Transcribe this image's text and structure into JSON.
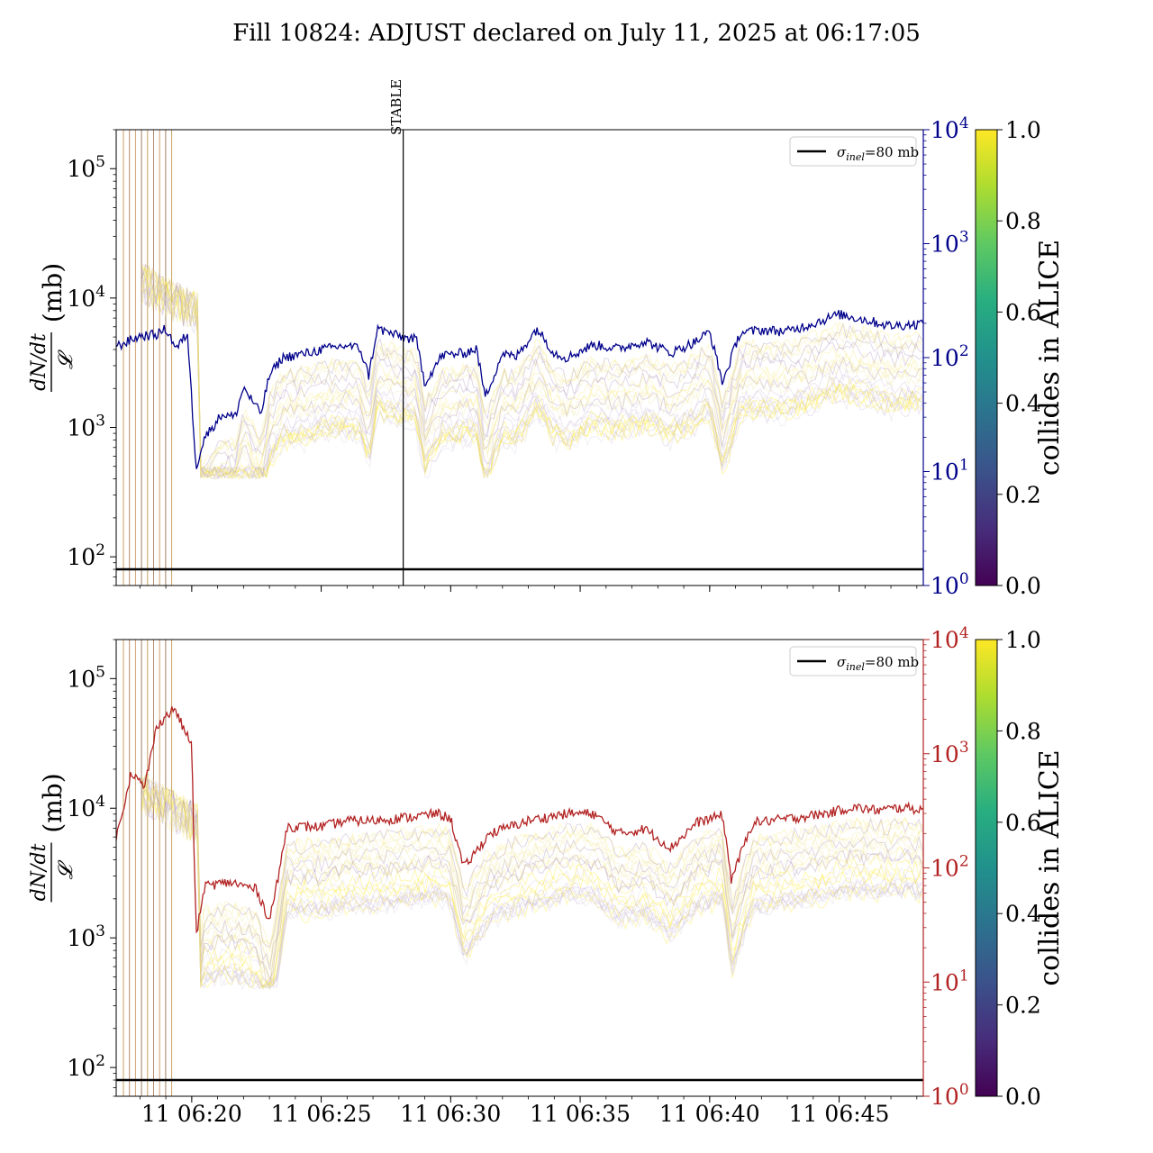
{
  "chart_data": {
    "title": "Fill 10824: ADJUST declared on July 11, 2025 at 06:17:05",
    "type": "line",
    "x_tick_labels": [
      "11 06:20",
      "11 06:25",
      "11 06:30",
      "11 06:35",
      "11 06:40",
      "11 06:45"
    ],
    "x_range": [
      "06:17:05",
      "06:48:15"
    ],
    "vertical_marker": {
      "label": "STABLE",
      "time": "06:28:10"
    },
    "panels": [
      {
        "id": "top",
        "ylabel_numerator": "dN/dt",
        "ylabel_denominator": "𝓛",
        "ylabel_unit": "(mb)",
        "yscale": "log",
        "ylim": [
          60,
          200000
        ],
        "y_ticks": [
          "10^2",
          "10^3",
          "10^4",
          "10^5"
        ],
        "y2scale": "log",
        "y2lim": [
          1,
          10000
        ],
        "y2_ticks": [
          "10^0",
          "10^1",
          "10^2",
          "10^3",
          "10^4"
        ],
        "y2_color": "#00008b",
        "reference_line": {
          "label": "σinel=80 mb",
          "value": 80
        },
        "legend_location": "upper right",
        "colorbar": {
          "label": "collides in ALICE",
          "min": 0.0,
          "max": 1.0,
          "ticks": [
            "0.0",
            "0.2",
            "0.4",
            "0.6",
            "0.8",
            "1.0"
          ],
          "colormap": "viridis"
        },
        "right_axis_series_keypoints": [
          [
            "06:17:05",
            125
          ],
          [
            "06:18:00",
            155
          ],
          [
            "06:18:40",
            160
          ],
          [
            "06:19:00",
            180
          ],
          [
            "06:19:25",
            120
          ],
          [
            "06:19:50",
            165
          ],
          [
            "06:20:10",
            11
          ],
          [
            "06:20:30",
            20
          ],
          [
            "06:21:10",
            32
          ],
          [
            "06:21:40",
            30
          ],
          [
            "06:22:00",
            55
          ],
          [
            "06:22:40",
            32
          ],
          [
            "06:23:00",
            70
          ],
          [
            "06:23:30",
            100
          ],
          [
            "06:24:30",
            110
          ],
          [
            "06:25:00",
            118
          ],
          [
            "06:26:00",
            128
          ],
          [
            "06:26:30",
            120
          ],
          [
            "06:26:50",
            70
          ],
          [
            "06:27:10",
            180
          ],
          [
            "06:28:10",
            150
          ],
          [
            "06:28:40",
            145
          ],
          [
            "06:29:00",
            60
          ],
          [
            "06:29:40",
            105
          ],
          [
            "06:30:30",
            110
          ],
          [
            "06:31:00",
            120
          ],
          [
            "06:31:20",
            45
          ],
          [
            "06:32:00",
            110
          ],
          [
            "06:32:30",
            100
          ],
          [
            "06:33:20",
            180
          ],
          [
            "06:34:00",
            110
          ],
          [
            "06:34:30",
            100
          ],
          [
            "06:35:30",
            130
          ],
          [
            "06:36:30",
            120
          ],
          [
            "06:37:30",
            140
          ],
          [
            "06:38:30",
            110
          ],
          [
            "06:39:30",
            140
          ],
          [
            "06:40:00",
            170
          ],
          [
            "06:40:30",
            60
          ],
          [
            "06:41:10",
            165
          ],
          [
            "06:42:00",
            175
          ],
          [
            "06:43:00",
            170
          ],
          [
            "06:44:00",
            200
          ],
          [
            "06:45:00",
            240
          ],
          [
            "06:46:00",
            215
          ],
          [
            "06:47:00",
            190
          ],
          [
            "06:48:15",
            200
          ]
        ]
      },
      {
        "id": "bottom",
        "ylabel_numerator": "dN/dt",
        "ylabel_denominator": "𝓛",
        "ylabel_unit": "(mb)",
        "yscale": "log",
        "ylim": [
          60,
          200000
        ],
        "y_ticks": [
          "10^2",
          "10^3",
          "10^4",
          "10^5"
        ],
        "y2scale": "log",
        "y2lim": [
          1,
          10000
        ],
        "y2_ticks": [
          "10^0",
          "10^1",
          "10^2",
          "10^3",
          "10^4"
        ],
        "y2_color": "#b22222",
        "reference_line": {
          "label": "σinel=80 mb",
          "value": 80
        },
        "legend_location": "upper right",
        "colorbar": {
          "label": "collides in ALICE",
          "min": 0.0,
          "max": 1.0,
          "ticks": [
            "0.0",
            "0.2",
            "0.4",
            "0.6",
            "0.8",
            "1.0"
          ],
          "colormap": "viridis"
        },
        "right_axis_series_keypoints": [
          [
            "06:17:05",
            180
          ],
          [
            "06:17:40",
            700
          ],
          [
            "06:18:10",
            500
          ],
          [
            "06:18:40",
            1800
          ],
          [
            "06:19:20",
            2500
          ],
          [
            "06:19:40",
            1700
          ],
          [
            "06:20:00",
            1200
          ],
          [
            "06:20:10",
            25
          ],
          [
            "06:20:30",
            70
          ],
          [
            "06:21:30",
            75
          ],
          [
            "06:22:30",
            65
          ],
          [
            "06:23:00",
            35
          ],
          [
            "06:23:20",
            80
          ],
          [
            "06:23:40",
            230
          ],
          [
            "06:25:00",
            230
          ],
          [
            "06:26:00",
            260
          ],
          [
            "06:27:00",
            260
          ],
          [
            "06:28:30",
            280
          ],
          [
            "06:29:30",
            300
          ],
          [
            "06:30:00",
            270
          ],
          [
            "06:30:30",
            100
          ],
          [
            "06:31:30",
            200
          ],
          [
            "06:33:00",
            260
          ],
          [
            "06:34:30",
            300
          ],
          [
            "06:35:30",
            300
          ],
          [
            "06:36:30",
            200
          ],
          [
            "06:37:30",
            220
          ],
          [
            "06:38:30",
            150
          ],
          [
            "06:39:30",
            250
          ],
          [
            "06:40:30",
            290
          ],
          [
            "06:40:50",
            80
          ],
          [
            "06:41:40",
            250
          ],
          [
            "06:43:00",
            270
          ],
          [
            "06:44:30",
            300
          ],
          [
            "06:45:30",
            340
          ],
          [
            "06:46:30",
            320
          ],
          [
            "06:47:30",
            340
          ],
          [
            "06:48:15",
            320
          ]
        ]
      }
    ]
  }
}
